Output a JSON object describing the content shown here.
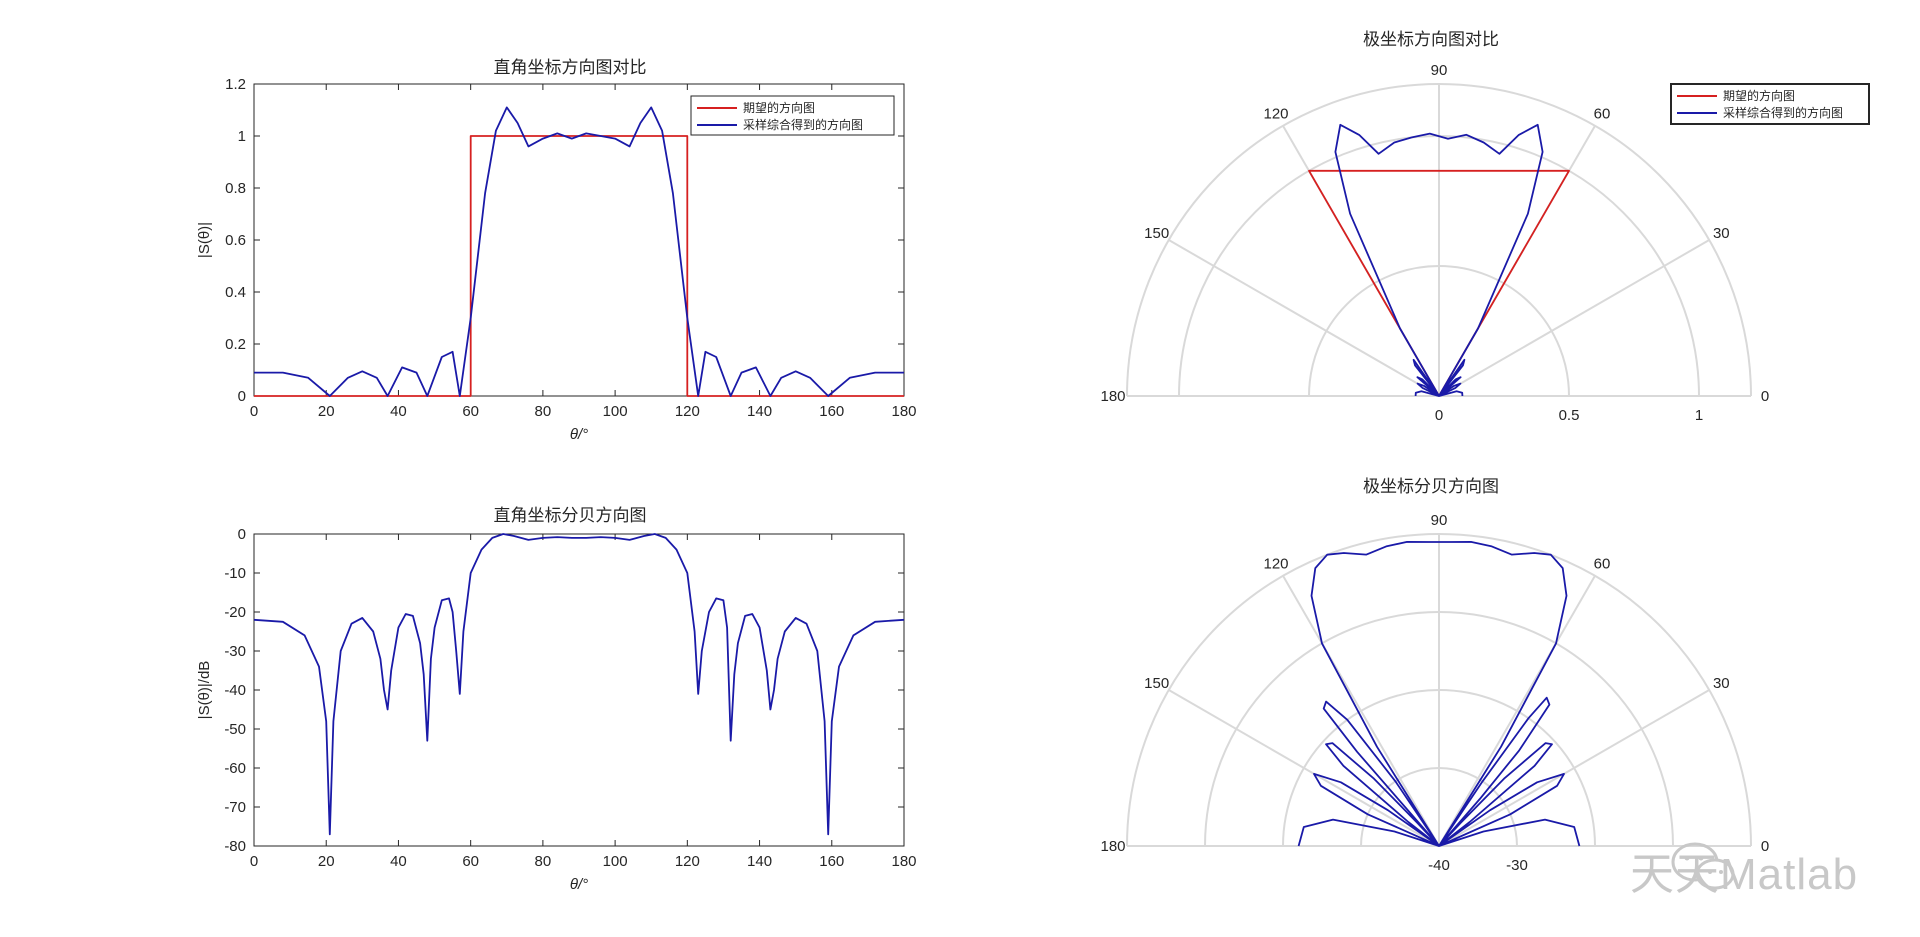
{
  "chart_data": [
    {
      "type": "line",
      "title": "直角坐标方向图对比",
      "xlabel": "θ/°",
      "ylabel": "|S(θ)|",
      "xlim": [
        0,
        180
      ],
      "ylim": [
        0,
        1.2
      ],
      "xticks": [
        "0",
        "20",
        "40",
        "60",
        "80",
        "100",
        "120",
        "140",
        "160",
        "180"
      ],
      "yticks": [
        "0",
        "0.2",
        "0.4",
        "0.6",
        "0.8",
        "1",
        "1.2"
      ],
      "legend": {
        "placement": "top-right",
        "entries": [
          "期望的方向图",
          "采样综合得到的方向图"
        ]
      },
      "series": [
        {
          "name": "期望的方向图",
          "color": "#d62020",
          "x": [
            0,
            60,
            60,
            120,
            120,
            180
          ],
          "y": [
            0,
            0,
            1,
            1,
            0,
            0
          ]
        },
        {
          "name": "采样综合得到的方向图",
          "color": "#1a1aa8",
          "x": [
            0,
            8,
            15,
            21,
            26,
            30,
            34,
            37,
            41,
            45,
            48,
            52,
            55,
            57,
            60,
            64,
            67,
            70,
            73,
            76,
            80,
            84,
            88,
            92,
            96,
            100,
            104,
            107,
            110,
            113,
            116,
            120,
            123,
            125,
            128,
            132,
            135,
            139,
            143,
            146,
            150,
            154,
            159,
            165,
            172,
            180
          ],
          "y": [
            0.09,
            0.09,
            0.07,
            0.0,
            0.07,
            0.095,
            0.07,
            0.0,
            0.11,
            0.09,
            0.0,
            0.15,
            0.17,
            0.0,
            0.3,
            0.78,
            1.02,
            1.11,
            1.05,
            0.96,
            0.99,
            1.01,
            0.99,
            1.01,
            1.0,
            0.99,
            0.96,
            1.05,
            1.11,
            1.02,
            0.78,
            0.3,
            0.0,
            0.17,
            0.15,
            0.0,
            0.09,
            0.11,
            0.0,
            0.07,
            0.095,
            0.07,
            0.0,
            0.07,
            0.09,
            0.09
          ]
        }
      ]
    },
    {
      "type": "line",
      "title": "直角坐标分贝方向图",
      "xlabel": "θ/°",
      "ylabel": "|S(θ)|/dB",
      "xlim": [
        0,
        180
      ],
      "ylim": [
        -80,
        0
      ],
      "xticks": [
        "0",
        "20",
        "40",
        "60",
        "80",
        "100",
        "120",
        "140",
        "160",
        "180"
      ],
      "yticks": [
        "0",
        "-10",
        "-20",
        "-30",
        "-40",
        "-50",
        "-60",
        "-70",
        "-80"
      ],
      "series": [
        {
          "color": "#1a1aa8",
          "x": [
            0,
            8,
            14,
            18,
            20,
            21,
            22,
            24,
            27,
            30,
            33,
            35,
            36,
            37,
            38,
            40,
            42,
            44,
            46,
            47,
            48,
            49,
            50,
            52,
            54,
            55,
            56,
            57,
            58,
            60,
            63,
            66,
            69,
            72,
            76,
            80,
            84,
            88,
            92,
            96,
            100,
            104,
            108,
            111,
            114,
            117,
            120,
            122,
            123,
            124,
            126,
            128,
            130,
            131,
            132,
            133,
            134,
            136,
            138,
            140,
            142,
            143,
            144,
            145,
            147,
            150,
            153,
            156,
            158,
            159,
            160,
            162,
            166,
            172,
            180
          ],
          "y": [
            -22,
            -22.5,
            -26,
            -34,
            -48,
            -77,
            -48,
            -30,
            -23,
            -21.5,
            -25,
            -32,
            -40,
            -45,
            -35,
            -24,
            -20.5,
            -21,
            -28,
            -36,
            -53,
            -32,
            -24,
            -17,
            -16.5,
            -20,
            -30,
            -41,
            -25,
            -10,
            -4,
            -1,
            0,
            -0.5,
            -1.5,
            -1,
            -0.8,
            -1,
            -1,
            -0.8,
            -1,
            -1.5,
            -0.5,
            0,
            -1,
            -4,
            -10,
            -25,
            -41,
            -30,
            -20,
            -16.5,
            -17,
            -24,
            -53,
            -36,
            -28,
            -21,
            -20.5,
            -24,
            -35,
            -45,
            -40,
            -32,
            -25,
            -21.5,
            -23,
            -30,
            -48,
            -77,
            -48,
            -34,
            -26,
            -22.5,
            -22
          ]
        }
      ]
    },
    {
      "type": "line",
      "polar": true,
      "title": "极坐标方向图对比",
      "angle_ticks": [
        "0",
        "30",
        "60",
        "90",
        "120",
        "150",
        "180"
      ],
      "radial_ticks": [
        "0",
        "0.5",
        "1"
      ],
      "rlim": [
        0,
        1.2
      ],
      "legend": {
        "placement": "top-right",
        "entries": [
          "期望的方向图",
          "采样综合得到的方向图"
        ]
      },
      "series": [
        {
          "name": "期望的方向图",
          "color": "#d62020",
          "theta": [
            0,
            60,
            60,
            120,
            120,
            180
          ],
          "r": [
            0,
            0,
            1,
            1,
            0,
            0
          ]
        },
        {
          "name": "采样综合得到的方向图",
          "color": "#1a1aa8",
          "theta": [
            0,
            8,
            15,
            21,
            26,
            30,
            34,
            37,
            41,
            45,
            48,
            52,
            55,
            57,
            60,
            64,
            67,
            70,
            73,
            76,
            80,
            84,
            88,
            92,
            96,
            100,
            104,
            107,
            110,
            113,
            116,
            120,
            123,
            125,
            128,
            132,
            135,
            139,
            143,
            146,
            150,
            154,
            159,
            165,
            172,
            180
          ],
          "r": [
            0.09,
            0.09,
            0.07,
            0.0,
            0.07,
            0.095,
            0.07,
            0.0,
            0.11,
            0.09,
            0.0,
            0.15,
            0.17,
            0.0,
            0.3,
            0.78,
            1.02,
            1.11,
            1.05,
            0.96,
            0.99,
            1.01,
            0.99,
            1.01,
            1.0,
            0.99,
            0.96,
            1.05,
            1.11,
            1.02,
            0.78,
            0.3,
            0.0,
            0.17,
            0.15,
            0.0,
            0.09,
            0.11,
            0.0,
            0.07,
            0.095,
            0.07,
            0.0,
            0.07,
            0.09,
            0.09
          ]
        }
      ]
    },
    {
      "type": "line",
      "polar": true,
      "title": "极坐标分贝方向图",
      "angle_ticks": [
        "0",
        "30",
        "60",
        "90",
        "120",
        "150",
        "180"
      ],
      "radial_ticks": [
        "-40",
        "-30"
      ],
      "rlim": [
        -40,
        0
      ],
      "series": [
        {
          "color": "#1a1aa8",
          "theta": [
            0,
            8,
            14,
            18,
            20,
            21,
            22,
            24,
            27,
            30,
            33,
            35,
            36,
            37,
            38,
            40,
            42,
            44,
            46,
            47,
            48,
            49,
            50,
            52,
            54,
            55,
            56,
            57,
            58,
            60,
            63,
            66,
            69,
            72,
            76,
            80,
            84,
            88,
            92,
            96,
            100,
            104,
            108,
            111,
            114,
            117,
            120,
            122,
            123,
            124,
            126,
            128,
            130,
            131,
            132,
            133,
            134,
            136,
            138,
            140,
            142,
            143,
            144,
            145,
            147,
            150,
            153,
            156,
            158,
            159,
            160,
            162,
            166,
            172,
            180
          ],
          "r": [
            -22,
            -22.5,
            -26,
            -34,
            -48,
            -77,
            -48,
            -30,
            -23,
            -21.5,
            -25,
            -32,
            -40,
            -45,
            -35,
            -24,
            -20.5,
            -21,
            -28,
            -36,
            -53,
            -32,
            -24,
            -17,
            -16.5,
            -20,
            -30,
            -41,
            -25,
            -10,
            -4,
            -1,
            0,
            -0.5,
            -1.5,
            -1,
            -0.8,
            -1,
            -1,
            -0.8,
            -1,
            -1.5,
            -0.5,
            0,
            -1,
            -4,
            -10,
            -25,
            -41,
            -30,
            -20,
            -16.5,
            -17,
            -24,
            -53,
            -36,
            -28,
            -21,
            -20.5,
            -24,
            -35,
            -45,
            -40,
            -32,
            -25,
            -21.5,
            -23,
            -30,
            -48,
            -77,
            -48,
            -34,
            -26,
            -22.5,
            -22
          ]
        }
      ]
    }
  ],
  "watermark": {
    "text": "天天Matlab",
    "icon": "wechat-icon"
  }
}
